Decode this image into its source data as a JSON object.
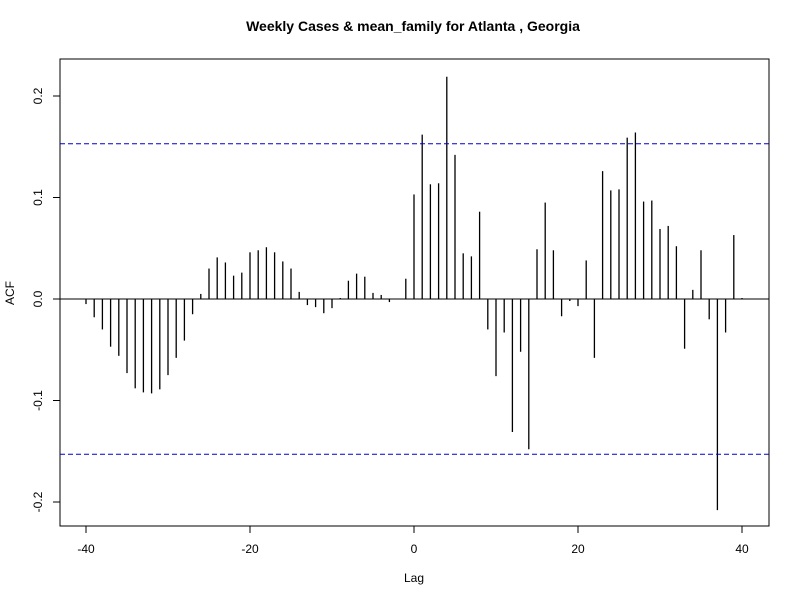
{
  "chart_data": {
    "type": "bar",
    "title": "Weekly Cases & mean_family for Atlanta , Georgia",
    "xlabel": "Lag",
    "ylabel": "ACF",
    "xlim": [
      -40,
      40
    ],
    "ylim": [
      -0.2,
      0.23
    ],
    "xticks": [
      -40,
      -20,
      0,
      20,
      40
    ],
    "yticks": [
      -0.2,
      -0.1,
      0.0,
      0.1,
      0.2
    ],
    "xtick_labels": [
      "-40",
      "-20",
      "0",
      "20",
      "40"
    ],
    "ytick_labels": [
      "-0.2",
      "-0.1",
      "0.0",
      "0.1",
      "0.2"
    ],
    "confidence_bound": 0.153,
    "lag": [
      -40,
      -39,
      -38,
      -37,
      -36,
      -35,
      -34,
      -33,
      -32,
      -31,
      -30,
      -29,
      -28,
      -27,
      -26,
      -25,
      -24,
      -23,
      -22,
      -21,
      -20,
      -19,
      -18,
      -17,
      -16,
      -15,
      -14,
      -13,
      -12,
      -11,
      -10,
      -9,
      -8,
      -7,
      -6,
      -5,
      -4,
      -3,
      -2,
      -1,
      0,
      1,
      2,
      3,
      4,
      5,
      6,
      7,
      8,
      9,
      10,
      11,
      12,
      13,
      14,
      15,
      16,
      17,
      18,
      19,
      20,
      21,
      22,
      23,
      24,
      25,
      26,
      27,
      28,
      29,
      30,
      31,
      32,
      33,
      34,
      35,
      36,
      37,
      38,
      39,
      40
    ],
    "acf": [
      -0.005,
      -0.018,
      -0.03,
      -0.047,
      -0.056,
      -0.073,
      -0.088,
      -0.092,
      -0.093,
      -0.089,
      -0.075,
      -0.058,
      -0.041,
      -0.015,
      0.005,
      0.03,
      0.041,
      0.036,
      0.023,
      0.026,
      0.046,
      0.048,
      0.051,
      0.046,
      0.037,
      0.03,
      0.007,
      -0.006,
      -0.008,
      -0.014,
      -0.009,
      0.001,
      0.018,
      0.025,
      0.022,
      0.006,
      0.004,
      -0.003,
      0.0,
      0.02,
      0.103,
      0.162,
      0.113,
      0.114,
      0.219,
      0.142,
      0.045,
      0.042,
      0.086,
      -0.03,
      -0.076,
      -0.033,
      -0.131,
      -0.052,
      -0.148,
      0.049,
      0.095,
      0.048,
      -0.017,
      -0.002,
      -0.007,
      0.038,
      -0.058,
      0.126,
      0.107,
      0.108,
      0.159,
      0.164,
      0.096,
      0.097,
      0.069,
      0.072,
      0.052,
      -0.049,
      0.009,
      0.048,
      -0.02,
      -0.208,
      -0.033,
      0.063,
      0.001
    ],
    "grid": false,
    "colors": {
      "bars": "#000000",
      "bounds": "#0000cc",
      "axes": "#000000"
    }
  }
}
